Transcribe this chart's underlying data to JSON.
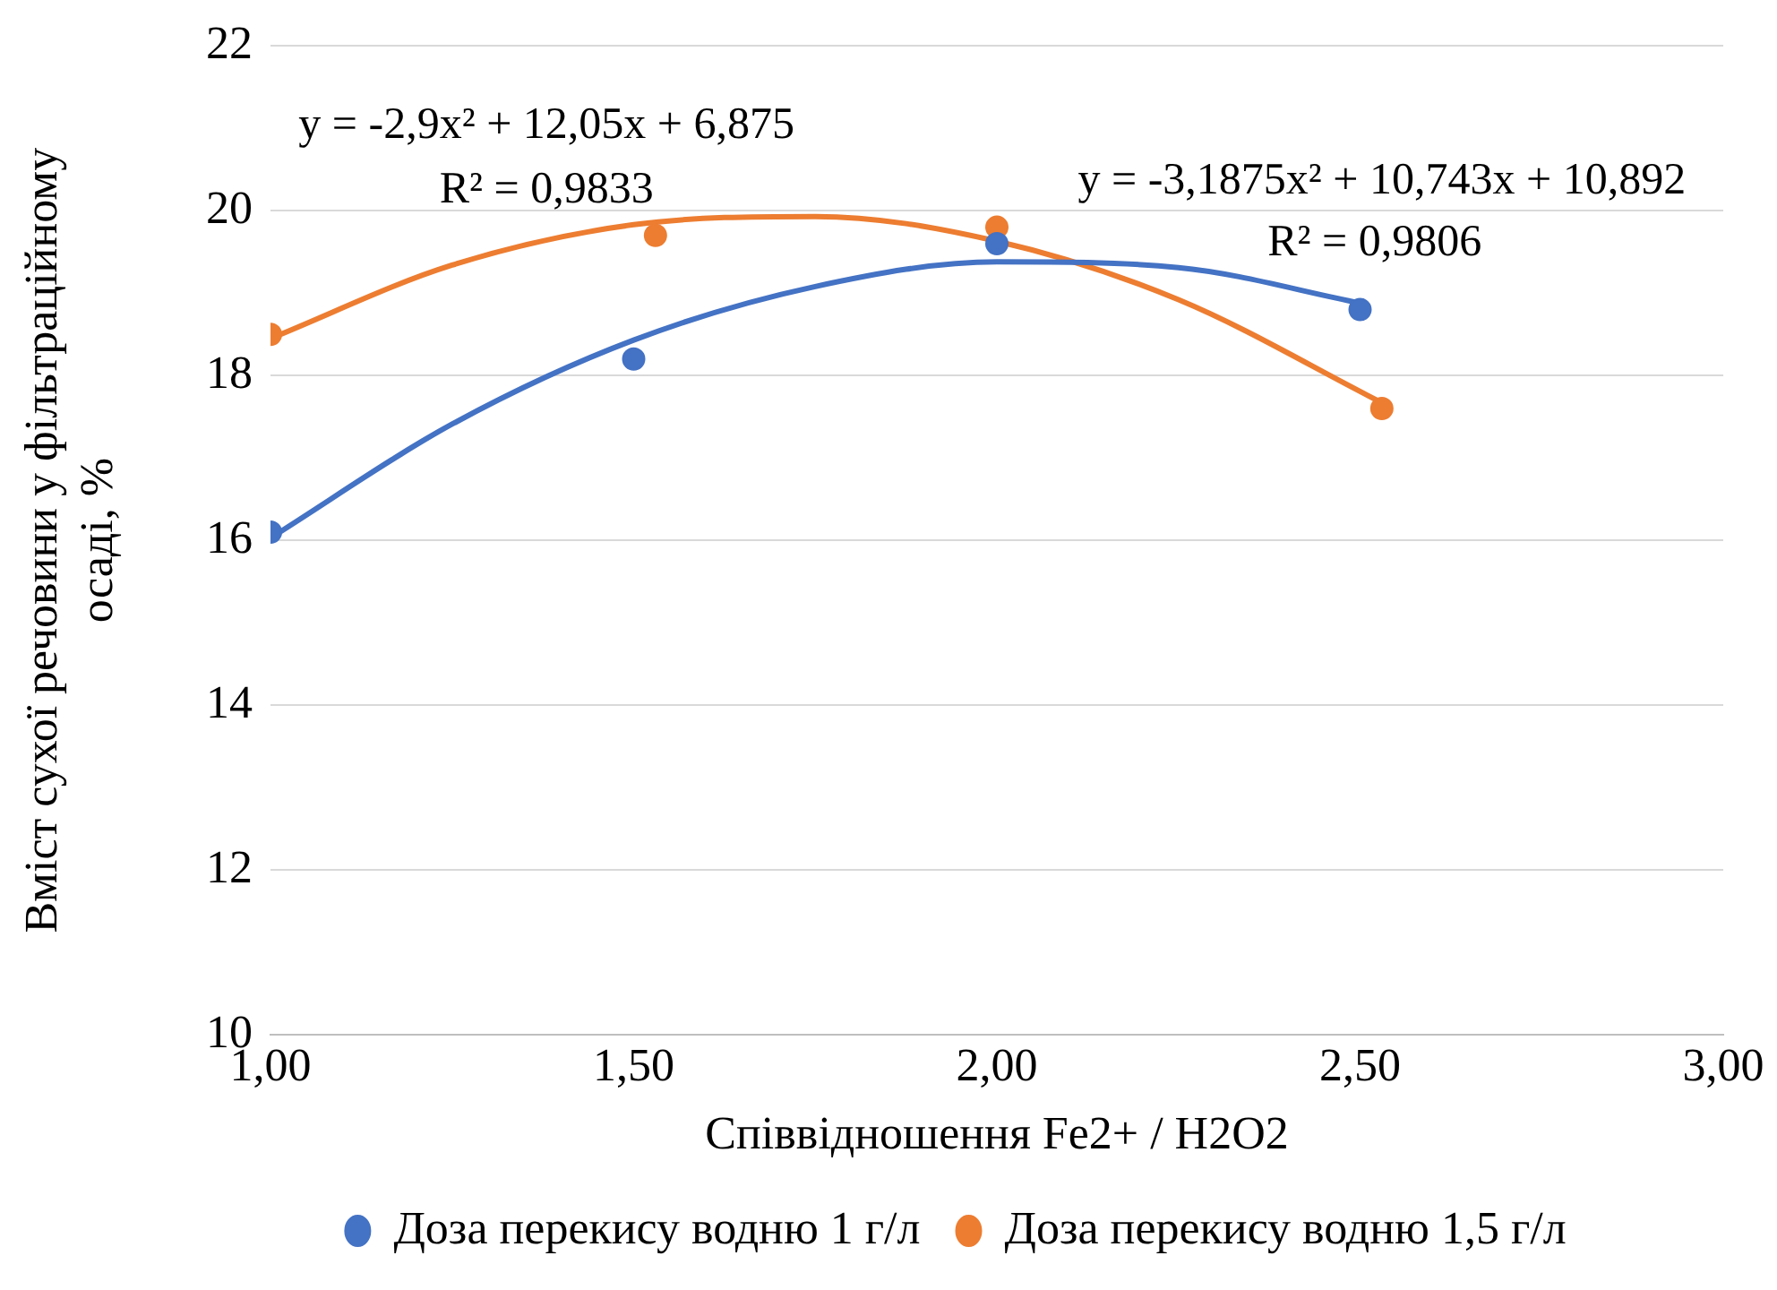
{
  "chart_data": {
    "type": "scatter",
    "xlabel": "Співвідношення Fe2+ / H2O2",
    "ylabel": "Вміст сухої речовини у фільтраційному осаді, %",
    "xlim": [
      1,
      3
    ],
    "xticks": [
      {
        "value": 1,
        "label": "1,00"
      },
      {
        "value": 1.5,
        "label": "1,50"
      },
      {
        "value": 2,
        "label": "2,00"
      },
      {
        "value": 2.5,
        "label": "2,50"
      },
      {
        "value": 3,
        "label": "3,00"
      }
    ],
    "ylim": [
      10,
      22
    ],
    "yticks": [
      10,
      12,
      14,
      16,
      18,
      20,
      22
    ],
    "grid": "y",
    "legend": "bottom",
    "marker": "circle",
    "series": [
      {
        "name": "Доза перекису водню 1 г/л",
        "color": "#4472c4",
        "type": "scatter",
        "x": [
          1,
          1.5,
          2,
          2.5
        ],
        "values": [
          16.1,
          18.2,
          19.6,
          18.8
        ]
      },
      {
        "name": "Доза перекису водню 1,5 г/л",
        "color": "#ed7d31",
        "type": "scatter",
        "x": [
          1,
          1.53,
          2,
          2.53
        ],
        "values": [
          18.5,
          19.7,
          19.8,
          17.6
        ]
      },
      {
        "color": "#4472c4",
        "type": "line",
        "marker": "none",
        "x": [
          1,
          1.25,
          1.5,
          1.75,
          2,
          2.25,
          2.5
        ],
        "values": [
          16.03,
          17.41,
          18.43,
          19.08,
          19.38,
          19.31,
          18.88
        ]
      },
      {
        "color": "#ed7d31",
        "type": "line",
        "marker": "none",
        "x": [
          1,
          1.25,
          1.5,
          1.75,
          2,
          2.25,
          2.53
        ],
        "values": [
          18.45,
          19.34,
          19.83,
          19.93,
          19.63,
          18.92,
          17.67
        ]
      }
    ],
    "annotations": [
      "y = -2,9x² + 12,05x + 6,875\nR² = 0,9833",
      "y = -3,1875x² + 10,743x + 10,892\nR² = 0,9806"
    ]
  }
}
